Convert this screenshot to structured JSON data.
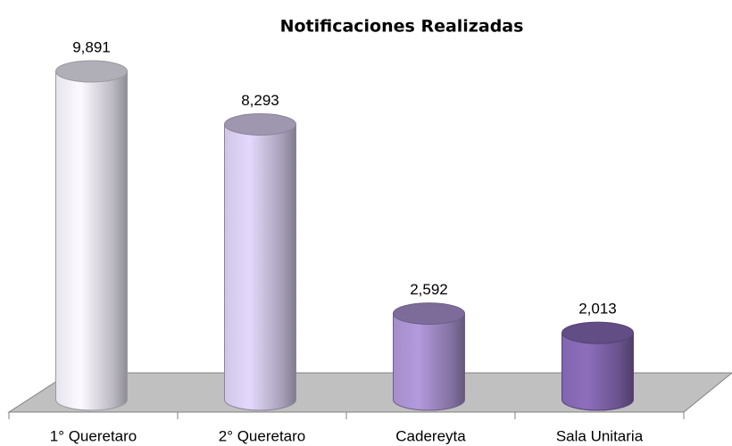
{
  "chart_data": {
    "type": "bar3d",
    "title": "Notificaciones Realizadas",
    "categories": [
      "1° Queretaro",
      "2° Queretaro",
      "Cadereyta",
      "Sala Unitaria"
    ],
    "values": [
      9891,
      8293,
      2592,
      2013
    ],
    "value_labels": [
      "9,891",
      "8,293",
      "2,592",
      "2,013"
    ],
    "colors": [
      "#dcd9e4",
      "#c6bddb",
      "#9c86c0",
      "#7b60a5"
    ]
  }
}
